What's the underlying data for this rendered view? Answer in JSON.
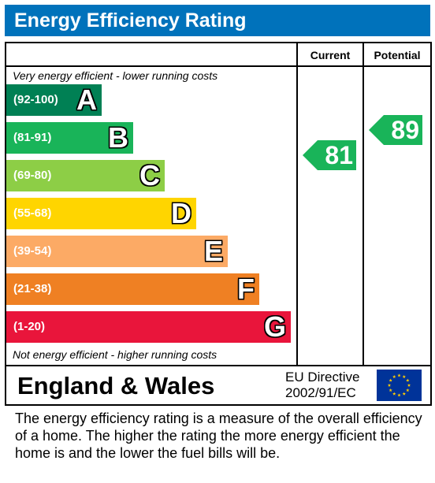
{
  "header": {
    "title": "Energy Efficiency Rating"
  },
  "columns": {
    "current": "Current",
    "potential": "Potential"
  },
  "notes": {
    "top": "Very energy efficient - lower running costs",
    "bottom": "Not energy efficient - higher running costs"
  },
  "bands": [
    {
      "range": "(92-100)",
      "letter": "A",
      "color": "#008054"
    },
    {
      "range": "(81-91)",
      "letter": "B",
      "color": "#19b459"
    },
    {
      "range": "(69-80)",
      "letter": "C",
      "color": "#8dce46"
    },
    {
      "range": "(55-68)",
      "letter": "D",
      "color": "#ffd500"
    },
    {
      "range": "(39-54)",
      "letter": "E",
      "color": "#fcaa65"
    },
    {
      "range": "(21-38)",
      "letter": "F",
      "color": "#ef8023"
    },
    {
      "range": "(1-20)",
      "letter": "G",
      "color": "#e9153b"
    }
  ],
  "ratings": {
    "current": {
      "value": "81",
      "band": "B",
      "color": "#19b459"
    },
    "potential": {
      "value": "89",
      "band": "B",
      "color": "#19b459"
    }
  },
  "footer": {
    "country": "England & Wales",
    "directive_line1": "EU Directive",
    "directive_line2": "2002/91/EC",
    "flag_icon": "eu-flag-icon"
  },
  "description": "The energy efficiency rating is a measure of the overall efficiency of a home.  The higher the rating the more energy efficient the home is and the lower the fuel bills will be."
}
